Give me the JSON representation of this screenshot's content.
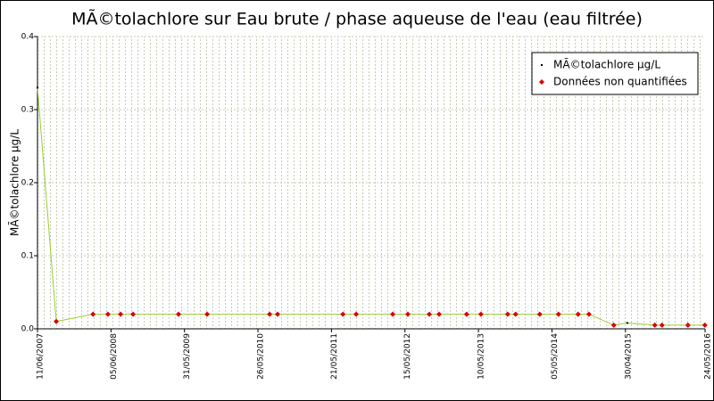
{
  "chart_data": {
    "type": "line",
    "title": "MÃ©tolachlore sur Eau brute / phase aqueuse de l'eau (eau filtrée)",
    "y_label": "MÃ©tolachlore µg/L",
    "xlim": [
      "11/06/2007",
      "24/05/2016"
    ],
    "xticks": [
      "11/06/2007",
      "05/06/2008",
      "31/05/2009",
      "26/05/2010",
      "21/05/2011",
      "15/05/2012",
      "10/05/2013",
      "05/05/2014",
      "30/04/2015",
      "24/05/2016"
    ],
    "ylim": [
      0,
      0.4
    ],
    "yticks": [
      {
        "value": 0,
        "label": "0.0"
      },
      0.1,
      0.2,
      0.3,
      0.4
    ],
    "grid": true,
    "legend": "upper right",
    "series": [
      {
        "name": "MÃ©tolachlore µg/L",
        "color": "#000000",
        "line_color": "#9acd32",
        "x": [
          "11/06/2007",
          "11/09/2007",
          "09/03/2008",
          "21/05/2008",
          "22/07/2008",
          "21/09/2008",
          "02/05/2009",
          "19/09/2009",
          "22/07/2010",
          "30/08/2010",
          "16/07/2011",
          "19/09/2011",
          "16/03/2012",
          "29/05/2012",
          "11/09/2012",
          "29/10/2012",
          "13/03/2013",
          "22/05/2013",
          "30/09/2013",
          "08/11/2013",
          "06/03/2014",
          "06/06/2014",
          "10/09/2014",
          "02/11/2014",
          "04/03/2015",
          "09/05/2015",
          "21/09/2015",
          "26/10/2015",
          "01/03/2016",
          "23/05/2016"
        ],
        "values": [
          0.33,
          0.01,
          0.02,
          0.02,
          0.02,
          0.02,
          0.02,
          0.02,
          0.02,
          0.02,
          0.02,
          0.02,
          0.02,
          0.02,
          0.02,
          0.02,
          0.02,
          0.02,
          0.02,
          0.02,
          0.02,
          0.02,
          0.02,
          0.02,
          0.005,
          0.008,
          0.005,
          0.005,
          0.005,
          0.005
        ]
      },
      {
        "name": "Données non quantifiées",
        "color": "#dd0000",
        "x": [
          "11/09/2007",
          "09/03/2008",
          "21/05/2008",
          "22/07/2008",
          "21/09/2008",
          "02/05/2009",
          "19/09/2009",
          "22/07/2010",
          "30/08/2010",
          "16/07/2011",
          "19/09/2011",
          "16/03/2012",
          "29/05/2012",
          "11/09/2012",
          "29/10/2012",
          "13/03/2013",
          "22/05/2013",
          "30/09/2013",
          "08/11/2013",
          "06/03/2014",
          "06/06/2014",
          "10/09/2014",
          "02/11/2014",
          "04/03/2015",
          "21/09/2015",
          "26/10/2015",
          "01/03/2016",
          "23/05/2016"
        ],
        "values": [
          0.01,
          0.02,
          0.02,
          0.02,
          0.02,
          0.02,
          0.02,
          0.02,
          0.02,
          0.02,
          0.02,
          0.02,
          0.02,
          0.02,
          0.02,
          0.02,
          0.02,
          0.02,
          0.02,
          0.02,
          0.02,
          0.02,
          0.02,
          0.005,
          0.005,
          0.005,
          0.005,
          0.005
        ]
      }
    ]
  }
}
